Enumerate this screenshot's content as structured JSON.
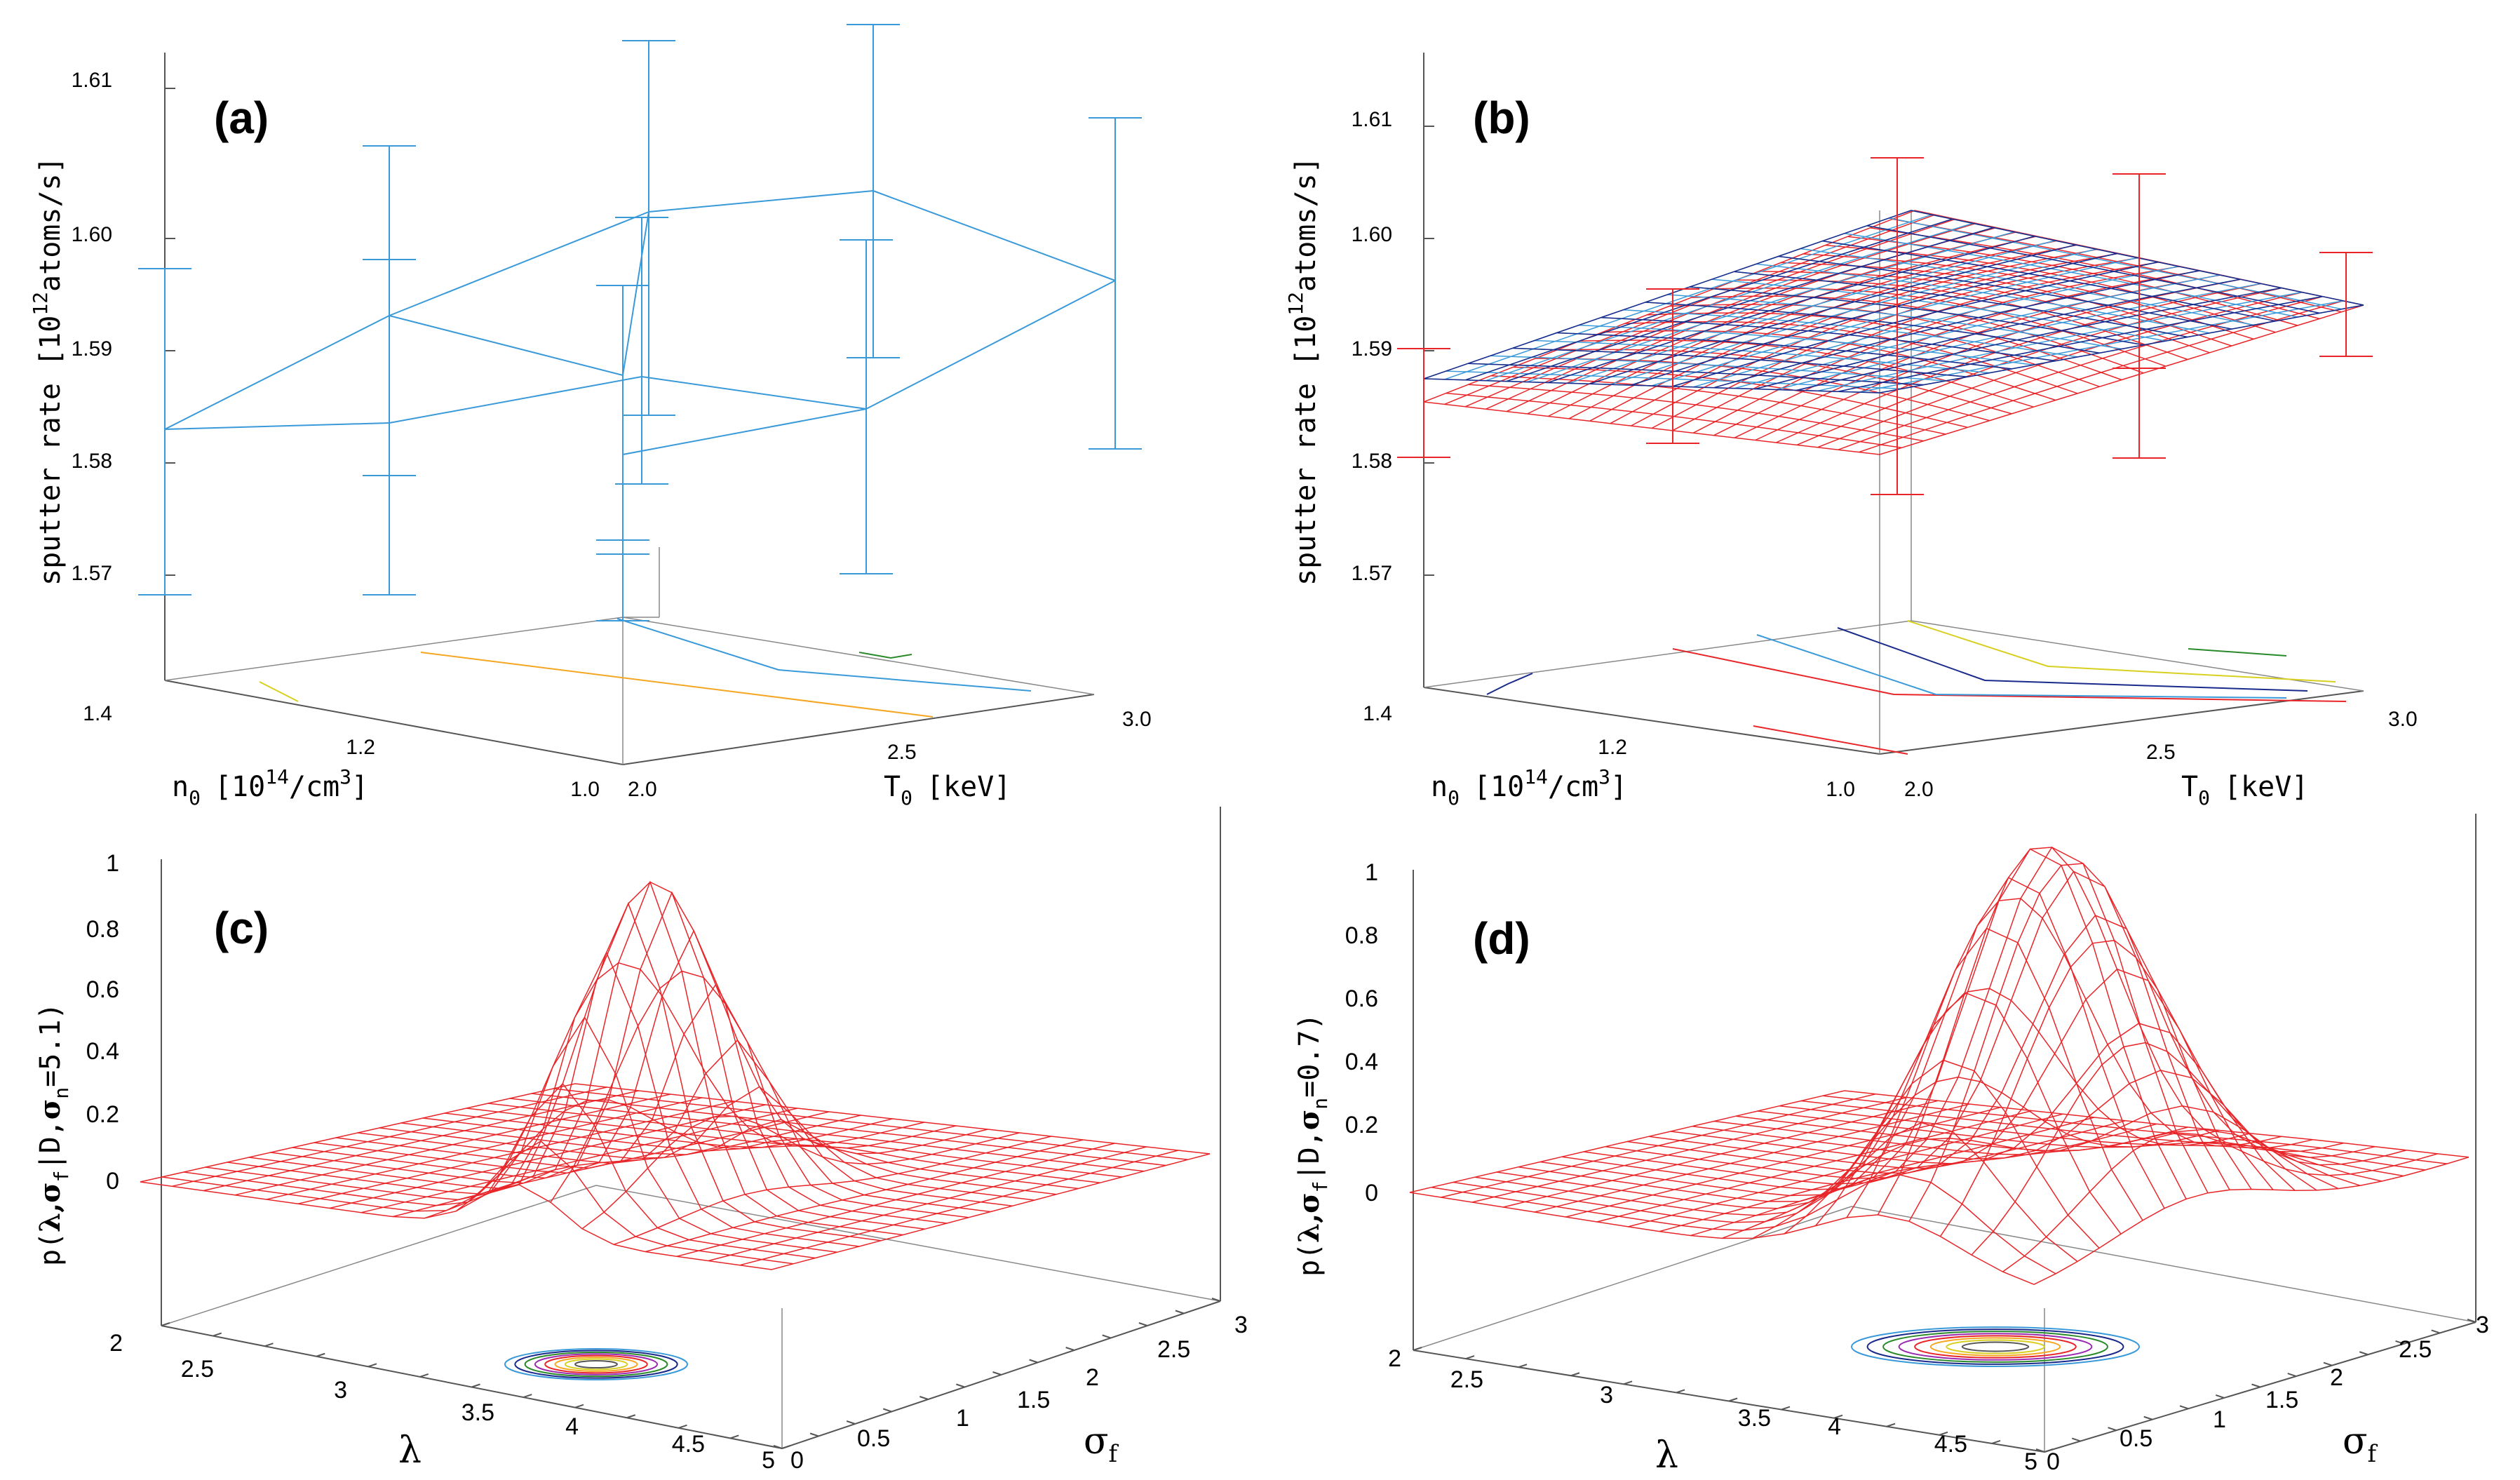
{
  "colors": {
    "cyan": "#3a9ad9",
    "red": "#e8262a",
    "navy": "#1a2a8a",
    "gray": "#888888",
    "axis": "#555555",
    "orange": "#f5a623",
    "yellow": "#d8d020",
    "green": "#2a8a2a",
    "purple": "#9a2ab0"
  },
  "chart_data": [
    {
      "panel": "(a)",
      "type": "3d-scatter-errorbar",
      "zlabel_main": "sputter rate [10",
      "zlabel_sup": "12",
      "zlabel_tail": "atoms/s]",
      "xlabel_main": "n",
      "xlabel_sub": "0",
      "xlabel_mid": "[10",
      "xlabel_sup": "14",
      "xlabel_tail": "/cm",
      "xlabel_sup2": "3",
      "xlabel_end": "]",
      "ylabel_main": "T",
      "ylabel_sub": "0",
      "ylabel_tail": "[keV]",
      "zticks": [
        "1.61",
        "1.60",
        "1.59",
        "1.58",
        "1.57"
      ],
      "xticks": [
        "1.4",
        "1.2",
        "1.0"
      ],
      "yticks": [
        "2.0",
        "2.5",
        "3.0"
      ],
      "zlim": [
        1.565,
        1.617
      ],
      "points": [
        {
          "n": 1.4,
          "T": 2.0,
          "rate": 1.5825,
          "err": 0.0142
        },
        {
          "n": 1.2,
          "T": 2.0,
          "rate": 1.5927,
          "err": 0.015
        },
        {
          "n": 1.0,
          "T": 2.0,
          "rate": 1.5873,
          "err": 0.008
        },
        {
          "n": 1.4,
          "T": 2.5,
          "rate": 1.5834,
          "err": 0.0142
        },
        {
          "n": 1.2,
          "T": 2.5,
          "rate": 1.5871,
          "err": 0.0152
        },
        {
          "n": 1.0,
          "T": 2.5,
          "rate": 1.6018,
          "err": 0.015
        },
        {
          "n": 1.4,
          "T": 3.0,
          "rate": 1.5805,
          "err": 0.022
        },
        {
          "n": 1.2,
          "T": 3.0,
          "rate": 1.5844,
          "err": 0.0152
        },
        {
          "n": 1.0,
          "T": 3.0,
          "rate": 1.6038,
          "err": 0.015
        },
        {
          "n": 1.0,
          "T": 3.5,
          "rate": 1.5957,
          "err": 0.015
        }
      ]
    },
    {
      "panel": "(b)",
      "type": "3d-surface",
      "zlabel_main": "sputter rate [10",
      "zlabel_sup": "12",
      "zlabel_tail": "atoms/s]",
      "xlabel_main": "n",
      "xlabel_sub": "0",
      "xlabel_mid": "[10",
      "xlabel_sup": "14",
      "xlabel_tail": "/cm",
      "xlabel_sup2": "3",
      "xlabel_end": "]",
      "ylabel_main": "T",
      "ylabel_sub": "0",
      "ylabel_tail": "[keV]",
      "zticks": [
        "1.61",
        "1.60",
        "1.59",
        "1.58",
        "1.57"
      ],
      "xticks": [
        "1.4",
        "1.2",
        "1.0"
      ],
      "yticks": [
        "2.0",
        "2.5",
        "3.0"
      ],
      "zlim": [
        1.565,
        1.617
      ],
      "series": [
        {
          "name": "fit surface (cyan/navy)",
          "corners": {
            "n1.4_T2.0": 1.587,
            "n1.0_T2.0": 1.588,
            "n1.0_T3.0": 1.601,
            "n1.4_T3.0": 1.594
          }
        },
        {
          "name": "fit surface (red)",
          "corners": {
            "n1.4_T2.0": 1.585,
            "n1.0_T2.0": 1.581,
            "n1.0_T3.0": 1.603,
            "n1.4_T3.0": 1.594
          }
        }
      ],
      "errorbars": [
        {
          "rate": 1.5845,
          "err": 0.0055
        },
        {
          "rate": 1.5875,
          "err": 0.0105
        },
        {
          "rate": 1.579,
          "err": 0.0125
        },
        {
          "rate": 1.599,
          "err": 0.01
        },
        {
          "rate": 1.584,
          "err": 0.006
        },
        {
          "rate": 1.593,
          "err": 0.006
        }
      ]
    },
    {
      "panel": "(c)",
      "type": "3d-surface",
      "zlabel_main": "p(",
      "zlabel_greek": "λ,σ",
      "zlabel_sub1": "f",
      "zlabel_mid": "|D,",
      "zlabel_sigma": "σ",
      "zlabel_sub2": "n",
      "zlabel_tail": "=5.1)",
      "xlabel": "λ",
      "ylabel": "σ",
      "ylabel_sub": "f",
      "zticks": [
        "1",
        "0.8",
        "0.6",
        "0.4",
        "0.2",
        "0"
      ],
      "xticks": [
        "2",
        "2.5",
        "3",
        "3.5",
        "4",
        "4.5",
        "5"
      ],
      "yticks": [
        "0",
        "0.5",
        "1",
        "1.5",
        "2",
        "2.5",
        "3"
      ],
      "peak": {
        "lambda": 3.8,
        "sigma_f": 0.9,
        "p": 0.95
      }
    },
    {
      "panel": "(d)",
      "type": "3d-surface",
      "zlabel_main": "p(",
      "zlabel_greek": "λ,σ",
      "zlabel_sub1": "f",
      "zlabel_mid": "|D,",
      "zlabel_sigma": "σ",
      "zlabel_sub2": "n",
      "zlabel_tail": "=0.7)",
      "xlabel": "λ",
      "ylabel": "σ",
      "ylabel_sub": "f",
      "zticks": [
        "1",
        "0.8",
        "0.6",
        "0.4",
        "0.2",
        "0"
      ],
      "xticks": [
        "2",
        "2.5",
        "3",
        "3.5",
        "4",
        "4.5",
        "5"
      ],
      "yticks": [
        "0",
        "0.5",
        "1",
        "1.5",
        "2",
        "2.5",
        "3"
      ],
      "peak": {
        "lambda": 4.3,
        "sigma_f": 1.1,
        "p": 1.0
      }
    }
  ]
}
